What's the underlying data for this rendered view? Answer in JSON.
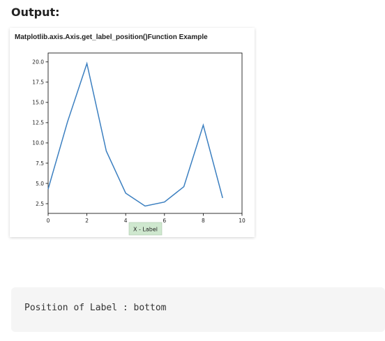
{
  "heading": "Output:",
  "code_output": "Position of Label : bottom",
  "colors": {
    "line": "#3b7fc0",
    "label_box": "#cfe8cf",
    "code_bg": "#f5f5f5"
  },
  "chart_data": {
    "type": "line",
    "title": "Matplotlib.axis.Axis.get_label_position()Function Example",
    "xlabel": "X - Label",
    "ylabel": "",
    "xlim": [
      0,
      10
    ],
    "ylim": [
      1.3,
      21.1
    ],
    "xticks": [
      0,
      2,
      4,
      6,
      8,
      10
    ],
    "yticks": [
      2.5,
      5.0,
      7.5,
      10.0,
      12.5,
      15.0,
      17.5,
      20.0
    ],
    "xtick_labels": [
      "0",
      "2",
      "4",
      "6",
      "8",
      "10"
    ],
    "ytick_labels": [
      "2.5",
      "5.0",
      "7.5",
      "10.0",
      "12.5",
      "15.0",
      "17.5",
      "20.0"
    ],
    "grid": false,
    "series": [
      {
        "x": [
          0,
          1,
          2,
          3,
          4,
          5,
          6,
          7,
          8,
          9
        ],
        "values": [
          4.3,
          12.6,
          19.8,
          9.0,
          3.8,
          2.2,
          2.7,
          4.6,
          12.2,
          3.2
        ]
      }
    ]
  }
}
